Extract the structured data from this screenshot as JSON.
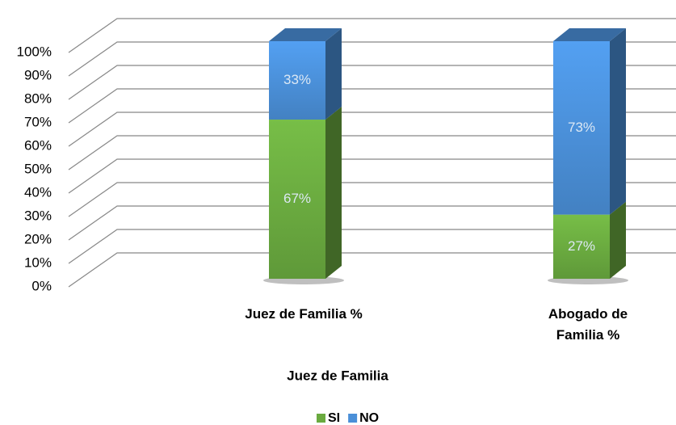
{
  "chart_data": {
    "type": "bar3d_stacked",
    "xlabel": "Juez de Familia",
    "categories": [
      "Juez de Familia %",
      "Abogado de Familia %"
    ],
    "series": [
      {
        "name": "SI",
        "color": "#6aaa3f",
        "values": [
          67,
          27
        ],
        "value_labels": [
          "67%",
          "27%"
        ]
      },
      {
        "name": "NO",
        "color": "#4a8fd8",
        "values": [
          33,
          73
        ],
        "value_labels": [
          "33%",
          "73%"
        ]
      }
    ],
    "ylim": [
      0,
      100
    ],
    "yticks": [
      {
        "value": 0,
        "label": "0%"
      },
      {
        "value": 10,
        "label": "10%"
      },
      {
        "value": 20,
        "label": "20%"
      },
      {
        "value": 30,
        "label": "30%"
      },
      {
        "value": 40,
        "label": "40%"
      },
      {
        "value": 50,
        "label": "50%"
      },
      {
        "value": 60,
        "label": "60%"
      },
      {
        "value": 70,
        "label": "70%"
      },
      {
        "value": 80,
        "label": "80%"
      },
      {
        "value": 90,
        "label": "90%"
      },
      {
        "value": 100,
        "label": "100%"
      }
    ],
    "grid": true,
    "legend": "bottom"
  }
}
